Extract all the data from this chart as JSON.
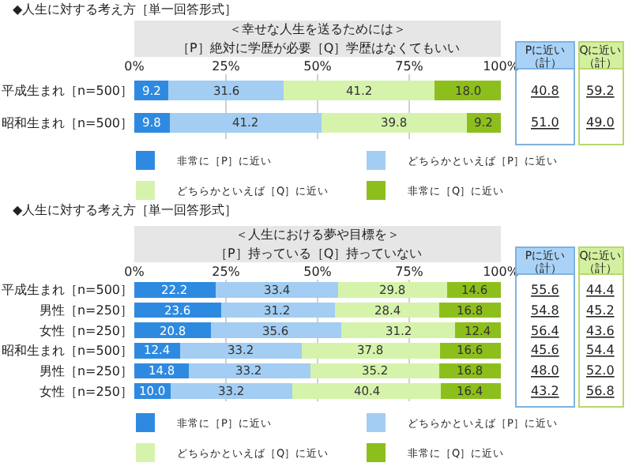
{
  "chart_data": [
    {
      "type": "bar",
      "orientation": "horizontal",
      "stacked": true,
      "title": "◆人生に対する考え方［単一回答形式］",
      "subtitle": "＜幸せな人生を送るためには＞",
      "categories": [
        "平成生まれ［n=500］",
        "昭和生まれ［n=500］"
      ],
      "series": [
        {
          "name": "非常に［P］に近い",
          "color": "#2e8ae0",
          "values": [
            9.2,
            9.8
          ],
          "value_labels": [
            "9.2",
            "9.8"
          ]
        },
        {
          "name": "どちらかといえば［P］に近い",
          "color": "#a3cdf2",
          "values": [
            31.6,
            41.2
          ],
          "value_labels": [
            "31.6",
            "41.2"
          ]
        },
        {
          "name": "どちらかといえば［Q］に近い",
          "color": "#d6f3ac",
          "values": [
            41.2,
            39.8
          ],
          "value_labels": [
            "41.2",
            "39.8"
          ]
        },
        {
          "name": "非常に［Q］に近い",
          "color": "#8dbf1c",
          "values": [
            18.0,
            9.2
          ],
          "value_labels": [
            "18.0",
            "9.2"
          ]
        }
      ],
      "xlim": [
        0,
        100
      ],
      "xticks": [
        {
          "value": 0,
          "label": "0%"
        },
        {
          "value": 25,
          "label": "25%"
        },
        {
          "value": 50,
          "label": "50%"
        },
        {
          "value": 75,
          "label": "75%"
        },
        {
          "value": 100,
          "label": "100%"
        }
      ],
      "grid": "x",
      "legend": "bottom",
      "annotations": [
        "［P］絶対に学歴が必要［Q］学歴はなくてもいい",
        "Pに近い（計）",
        "Qに近い（計）",
        "40.8",
        "59.2",
        "51.0",
        "49.0"
      ]
    },
    {
      "type": "bar",
      "orientation": "horizontal",
      "stacked": true,
      "title": "◆人生に対する考え方［単一回答形式］",
      "subtitle": "＜人生における夢や目標を＞",
      "categories": [
        "平成生まれ［n=500］",
        "男性［n=250］",
        "女性［n=250］",
        "昭和生まれ［n=500］",
        "男性［n=250］",
        "女性［n=250］"
      ],
      "series": [
        {
          "name": "非常に［P］に近い",
          "color": "#2e8ae0",
          "values": [
            22.2,
            23.6,
            20.8,
            12.4,
            14.8,
            10.0
          ],
          "value_labels": [
            "22.2",
            "23.6",
            "20.8",
            "12.4",
            "14.8",
            "10.0"
          ]
        },
        {
          "name": "どちらかといえば［P］に近い",
          "color": "#a3cdf2",
          "values": [
            33.4,
            31.2,
            35.6,
            33.2,
            33.2,
            33.2
          ],
          "value_labels": [
            "33.4",
            "31.2",
            "35.6",
            "33.2",
            "33.2",
            "33.2"
          ]
        },
        {
          "name": "どちらかといえば［Q］に近い",
          "color": "#d6f3ac",
          "values": [
            29.8,
            28.4,
            31.2,
            37.8,
            35.2,
            40.4
          ],
          "value_labels": [
            "29.8",
            "28.4",
            "31.2",
            "37.8",
            "35.2",
            "40.4"
          ]
        },
        {
          "name": "非常に［Q］に近い",
          "color": "#8dbf1c",
          "values": [
            14.6,
            16.8,
            12.4,
            16.6,
            16.8,
            16.4
          ],
          "value_labels": [
            "14.6",
            "16.8",
            "12.4",
            "16.6",
            "16.8",
            "16.4"
          ]
        }
      ],
      "xlim": [
        0,
        100
      ],
      "xticks": [
        {
          "value": 0,
          "label": "0%"
        },
        {
          "value": 25,
          "label": "25%"
        },
        {
          "value": 50,
          "label": "50%"
        },
        {
          "value": 75,
          "label": "75%"
        },
        {
          "value": 100,
          "label": "100%"
        }
      ],
      "grid": "x",
      "legend": "bottom",
      "annotations": [
        "［P］持っている［Q］持っていない",
        "Pに近い（計）",
        "Qに近い（計）",
        "55.6",
        "44.4",
        "54.8",
        "45.2",
        "56.4",
        "43.6",
        "45.6",
        "54.4",
        "48.0",
        "52.0",
        "43.2",
        "56.8"
      ]
    }
  ]
}
